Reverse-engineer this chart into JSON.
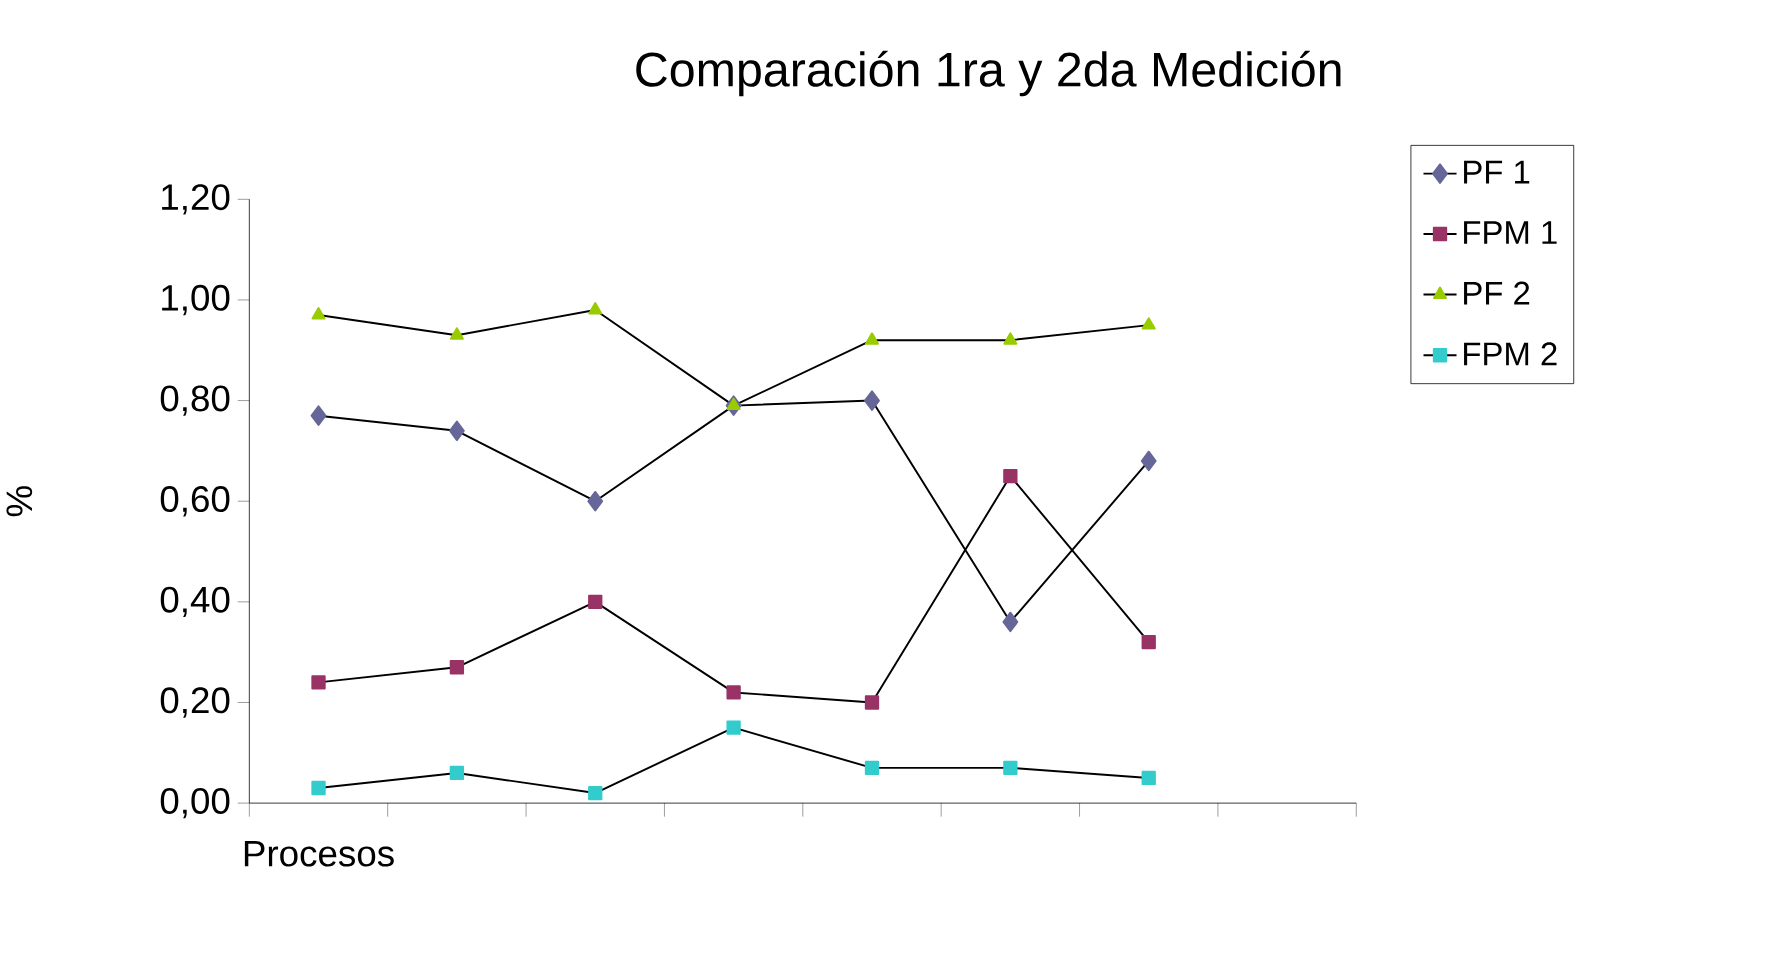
{
  "chart_data": {
    "type": "line",
    "title": "Comparación 1ra y 2da Medición",
    "ylabel": "%",
    "categories": [
      "Procesos",
      null,
      null,
      null,
      null,
      null,
      null,
      null
    ],
    "ylim": [
      0,
      1.2
    ],
    "yticks": [
      {
        "value": 0,
        "label": "0,00"
      },
      {
        "value": 0.2,
        "label": "0,20"
      },
      {
        "value": 0.4,
        "label": "0,40"
      },
      {
        "value": 0.6,
        "label": "0,60"
      },
      {
        "value": 0.8,
        "label": "0,80"
      },
      {
        "value": 1.0,
        "label": "1,00"
      },
      {
        "value": 1.2,
        "label": "1,20"
      }
    ],
    "legend": "right",
    "grid": false,
    "series": [
      {
        "name": "PF 1",
        "color": "#666699",
        "marker": "diamond",
        "values": [
          0.77,
          0.74,
          0.6,
          0.79,
          0.8,
          0.36,
          0.68,
          null
        ]
      },
      {
        "name": "FPM 1",
        "color": "#993366",
        "marker": "square",
        "values": [
          0.24,
          0.27,
          0.4,
          0.22,
          0.2,
          0.65,
          0.32,
          null
        ]
      },
      {
        "name": "PF 2",
        "color": "#99cc00",
        "marker": "triangle",
        "values": [
          0.97,
          0.93,
          0.98,
          0.79,
          0.92,
          0.92,
          0.95,
          null
        ]
      },
      {
        "name": "FPM 2",
        "color": "#33cccc",
        "marker": "square",
        "values": [
          0.03,
          0.06,
          0.02,
          0.15,
          0.07,
          0.07,
          0.05,
          null
        ]
      }
    ]
  }
}
